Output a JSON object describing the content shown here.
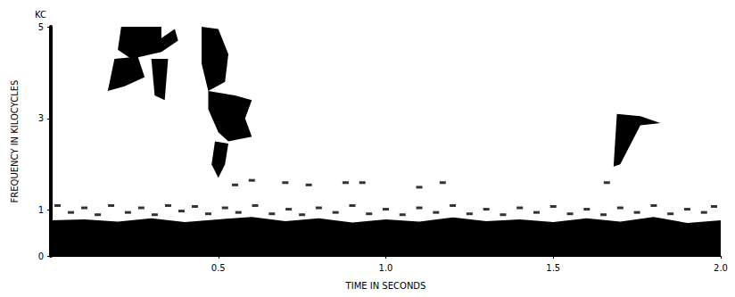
{
  "chart_data": {
    "type": "spectrogram",
    "annotation": "KC",
    "xlabel": "TIME IN SECONDS",
    "ylabel": "FREQUENCY IN KILOCYCLES",
    "xlim": [
      0,
      2
    ],
    "xticks": [
      0.5,
      {
        "value": 1,
        "label": "1.0"
      },
      1.5,
      {
        "value": 2,
        "label": "2.0"
      }
    ],
    "ylim": [
      0,
      5
    ],
    "yticks": [
      0,
      1,
      3,
      5
    ],
    "grid": false,
    "color": "#000000",
    "regions": [
      [
        [
          0,
          0
        ],
        [
          2,
          0
        ],
        [
          2,
          0.78
        ],
        [
          1.9,
          0.72
        ],
        [
          1.8,
          0.85
        ],
        [
          1.7,
          0.75
        ],
        [
          1.6,
          0.82
        ],
        [
          1.5,
          0.74
        ],
        [
          1.4,
          0.8
        ],
        [
          1.3,
          0.76
        ],
        [
          1.2,
          0.84
        ],
        [
          1.1,
          0.75
        ],
        [
          1.0,
          0.8
        ],
        [
          0.9,
          0.73
        ],
        [
          0.8,
          0.82
        ],
        [
          0.7,
          0.76
        ],
        [
          0.6,
          0.85
        ],
        [
          0.5,
          0.8
        ],
        [
          0.4,
          0.74
        ],
        [
          0.3,
          0.82
        ],
        [
          0.2,
          0.75
        ],
        [
          0.1,
          0.8
        ],
        [
          0,
          0.78
        ]
      ],
      [
        [
          0.21,
          5.0
        ],
        [
          0.33,
          5.0
        ],
        [
          0.33,
          4.75
        ],
        [
          0.37,
          4.95
        ],
        [
          0.38,
          4.7
        ],
        [
          0.33,
          4.45
        ],
        [
          0.24,
          4.3
        ],
        [
          0.2,
          4.5
        ]
      ],
      [
        [
          0.19,
          4.3
        ],
        [
          0.26,
          4.35
        ],
        [
          0.28,
          3.9
        ],
        [
          0.22,
          3.7
        ],
        [
          0.17,
          3.6
        ]
      ],
      [
        [
          0.3,
          4.3
        ],
        [
          0.35,
          4.3
        ],
        [
          0.34,
          3.4
        ],
        [
          0.31,
          3.5
        ]
      ],
      [
        [
          0.45,
          5.0
        ],
        [
          0.5,
          4.95
        ],
        [
          0.53,
          4.4
        ],
        [
          0.52,
          3.8
        ],
        [
          0.47,
          3.6
        ],
        [
          0.45,
          4.2
        ]
      ],
      [
        [
          0.47,
          3.6
        ],
        [
          0.55,
          3.5
        ],
        [
          0.6,
          3.4
        ],
        [
          0.58,
          3.0
        ],
        [
          0.6,
          2.6
        ],
        [
          0.53,
          2.5
        ],
        [
          0.5,
          2.7
        ],
        [
          0.47,
          3.2
        ]
      ],
      [
        [
          0.49,
          2.5
        ],
        [
          0.53,
          2.45
        ],
        [
          0.52,
          2.0
        ],
        [
          0.5,
          1.7
        ],
        [
          0.48,
          2.0
        ]
      ],
      [
        [
          1.69,
          3.1
        ],
        [
          1.76,
          3.05
        ],
        [
          1.82,
          2.9
        ],
        [
          1.76,
          2.85
        ],
        [
          1.7,
          2.0
        ],
        [
          1.68,
          1.95
        ]
      ]
    ],
    "specks": [
      [
        0.02,
        1.1
      ],
      [
        0.06,
        0.95
      ],
      [
        0.1,
        1.05
      ],
      [
        0.14,
        0.9
      ],
      [
        0.18,
        1.1
      ],
      [
        0.23,
        0.95
      ],
      [
        0.27,
        1.05
      ],
      [
        0.31,
        0.9
      ],
      [
        0.35,
        1.1
      ],
      [
        0.39,
        0.98
      ],
      [
        0.43,
        1.08
      ],
      [
        0.47,
        0.92
      ],
      [
        0.52,
        1.05
      ],
      [
        0.56,
        0.95
      ],
      [
        0.61,
        1.1
      ],
      [
        0.66,
        0.92
      ],
      [
        0.71,
        1.02
      ],
      [
        0.75,
        0.9
      ],
      [
        0.8,
        1.05
      ],
      [
        0.85,
        0.95
      ],
      [
        0.9,
        1.1
      ],
      [
        0.95,
        0.92
      ],
      [
        1.0,
        1.02
      ],
      [
        1.05,
        0.9
      ],
      [
        1.1,
        1.05
      ],
      [
        1.15,
        0.95
      ],
      [
        1.2,
        1.1
      ],
      [
        1.25,
        0.92
      ],
      [
        1.3,
        1.02
      ],
      [
        1.35,
        0.9
      ],
      [
        1.4,
        1.05
      ],
      [
        1.45,
        0.95
      ],
      [
        1.5,
        1.08
      ],
      [
        1.55,
        0.92
      ],
      [
        1.6,
        1.02
      ],
      [
        1.65,
        0.9
      ],
      [
        1.7,
        1.05
      ],
      [
        1.75,
        0.95
      ],
      [
        1.8,
        1.1
      ],
      [
        1.85,
        0.92
      ],
      [
        1.9,
        1.02
      ],
      [
        1.95,
        0.95
      ],
      [
        1.98,
        1.08
      ],
      [
        0.55,
        1.55
      ],
      [
        0.6,
        1.65
      ],
      [
        0.7,
        1.6
      ],
      [
        0.77,
        1.55
      ],
      [
        0.88,
        1.6
      ],
      [
        0.93,
        1.6
      ],
      [
        1.1,
        1.5
      ],
      [
        1.17,
        1.6
      ],
      [
        1.66,
        1.6
      ]
    ]
  }
}
